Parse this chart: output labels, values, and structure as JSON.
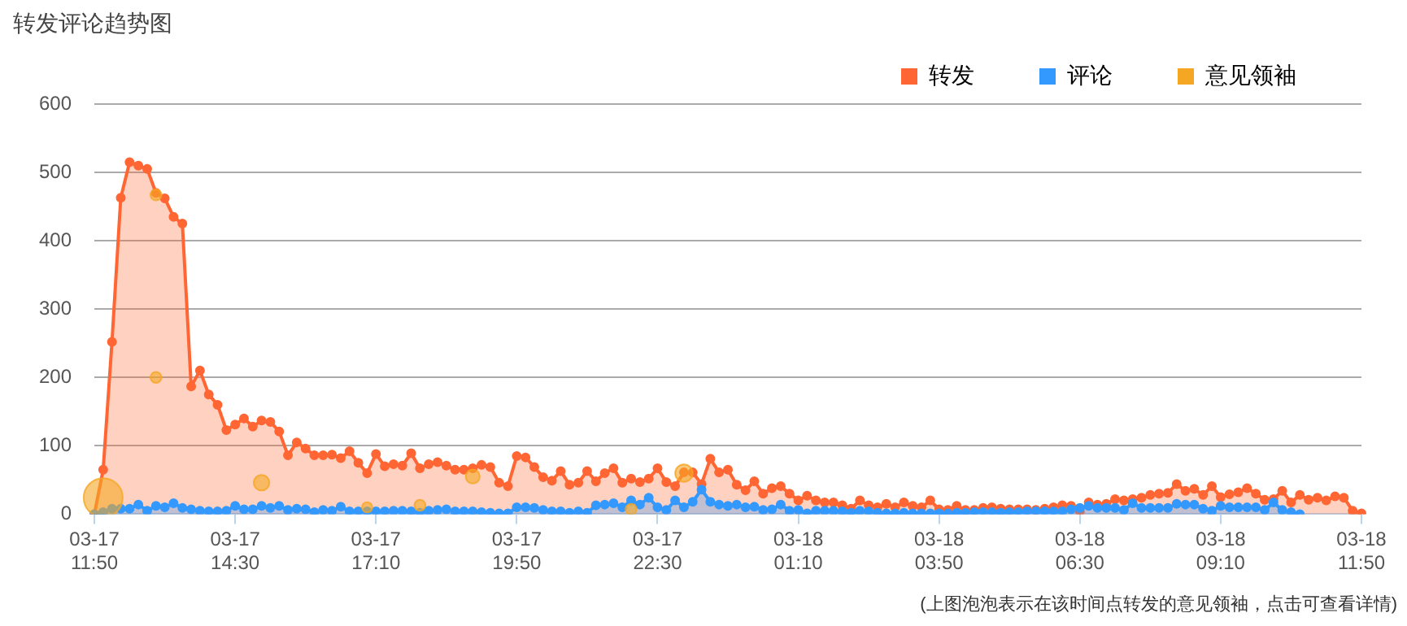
{
  "chart_data": {
    "type": "area",
    "title": "转发评论趋势图",
    "categories": [
      "03-17 11:50",
      null,
      null,
      null,
      null,
      null,
      null,
      null,
      null,
      null,
      null,
      null,
      null,
      null,
      null,
      null,
      "03-17 14:30",
      null,
      null,
      null,
      null,
      null,
      null,
      null,
      null,
      null,
      null,
      null,
      null,
      null,
      null,
      null,
      "03-17 17:10",
      null,
      null,
      null,
      null,
      null,
      null,
      null,
      null,
      null,
      null,
      null,
      null,
      null,
      null,
      null,
      "03-17 19:50",
      null,
      null,
      null,
      null,
      null,
      null,
      null,
      null,
      null,
      null,
      null,
      null,
      null,
      null,
      null,
      "03-17 22:30",
      null,
      null,
      null,
      null,
      null,
      null,
      null,
      null,
      null,
      null,
      null,
      null,
      null,
      null,
      null,
      "03-18 01:10",
      null,
      null,
      null,
      null,
      null,
      null,
      null,
      null,
      null,
      null,
      null,
      null,
      null,
      null,
      null,
      "03-18 03:50",
      null,
      null,
      null,
      null,
      null,
      null,
      null,
      null,
      null,
      null,
      null,
      null,
      null,
      null,
      null,
      "03-18 06:30",
      null,
      null,
      null,
      null,
      null,
      null,
      null,
      null,
      null,
      null,
      null,
      null,
      null,
      null,
      null,
      "03-18 09:10",
      null,
      null,
      null,
      null,
      null,
      null,
      null,
      null,
      null,
      null,
      null,
      null,
      null,
      null,
      null,
      "03-18 11:50"
    ],
    "ylim": [
      0,
      600
    ],
    "yticks": [
      0,
      100,
      200,
      300,
      400,
      500,
      600
    ],
    "grid": "y",
    "legend": "top right",
    "marker": "circle",
    "annotations": [
      "(上图泡泡表示在该时间点转发的意见领袖，点击可查看详情)"
    ],
    "series": [
      {
        "name": "转发",
        "color": "#ff6633",
        "values": [
          0,
          65,
          252,
          463,
          515,
          510,
          505,
          470,
          462,
          435,
          425,
          187,
          210,
          175,
          160,
          123,
          131,
          140,
          128,
          137,
          135,
          121,
          86,
          105,
          96,
          86,
          86,
          87,
          82,
          92,
          75,
          60,
          88,
          70,
          73,
          71,
          89,
          67,
          73,
          76,
          71,
          65,
          65,
          67,
          72,
          69,
          46,
          41,
          85,
          83,
          69,
          54,
          49,
          63,
          43,
          46,
          63,
          48,
          60,
          67,
          46,
          52,
          47,
          52,
          67,
          47,
          41,
          61,
          61,
          44,
          81,
          61,
          65,
          43,
          35,
          48,
          30,
          38,
          41,
          30,
          20,
          27,
          20,
          17,
          17,
          13,
          8,
          20,
          13,
          10,
          15,
          10,
          17,
          12,
          10,
          20,
          7,
          6,
          12,
          6,
          6,
          9,
          10,
          8,
          7,
          7,
          7,
          6,
          8,
          10,
          13,
          12,
          4,
          17,
          14,
          15,
          22,
          20,
          22,
          24,
          28,
          30,
          31,
          44,
          34,
          37,
          28,
          41,
          25,
          29,
          32,
          38,
          30,
          21,
          22,
          34,
          17,
          28,
          21,
          24,
          20,
          26,
          24,
          5,
          1
        ]
      },
      {
        "name": "评论",
        "color": "#3399ff",
        "values": [
          0,
          3,
          8,
          8,
          8,
          14,
          5,
          12,
          10,
          16,
          9,
          7,
          5,
          4,
          4,
          5,
          12,
          7,
          7,
          12,
          9,
          12,
          6,
          8,
          7,
          3,
          6,
          5,
          11,
          4,
          4,
          4,
          4,
          4,
          5,
          5,
          4,
          2,
          5,
          6,
          7,
          4,
          4,
          4,
          3,
          2,
          1,
          1,
          10,
          10,
          9,
          6,
          4,
          4,
          2,
          4,
          2,
          13,
          14,
          16,
          10,
          20,
          14,
          24,
          10,
          6,
          20,
          10,
          18,
          36,
          18,
          14,
          12,
          14,
          10,
          11,
          6,
          7,
          14,
          5,
          6,
          1,
          5,
          5,
          5,
          4,
          2,
          5,
          4,
          2,
          1,
          1,
          2,
          1,
          1,
          1,
          1,
          1,
          2,
          2,
          3,
          3,
          3,
          2,
          3,
          3,
          4,
          4,
          4,
          4,
          4,
          7,
          9,
          12,
          9,
          9,
          9,
          6,
          16,
          9,
          9,
          9,
          9,
          15,
          14,
          14,
          8,
          5,
          12,
          10,
          10,
          10,
          10,
          6,
          17,
          6,
          3,
          0,
          null,
          null,
          null,
          null,
          null,
          null,
          null
        ]
      },
      {
        "name": "意见领袖",
        "type": "bubble",
        "color": "#f5a623",
        "values": [
          null,
          24,
          null,
          null,
          null,
          null,
          null,
          467,
          null,
          null,
          null,
          null,
          null,
          null,
          null,
          null,
          null,
          null,
          null,
          46,
          null,
          null,
          null,
          null,
          null,
          null,
          null,
          null,
          null,
          null,
          null,
          10,
          null,
          null,
          null,
          null,
          null,
          13,
          null,
          null,
          null,
          null,
          null,
          55,
          null,
          null,
          null,
          null,
          null,
          null,
          null,
          null,
          null,
          null,
          null,
          null,
          null,
          null,
          null,
          null,
          null,
          7,
          null,
          null,
          null,
          null,
          null,
          60,
          null,
          null,
          null,
          null,
          null,
          null,
          null,
          null,
          null,
          null,
          null,
          null,
          null,
          null,
          null,
          null,
          null,
          null,
          null,
          null,
          null,
          null,
          null,
          null,
          null,
          null,
          null,
          null,
          null,
          null,
          null,
          null,
          null,
          null,
          null,
          null,
          null,
          null,
          null,
          null,
          null,
          null,
          null,
          null,
          null,
          null,
          null,
          null,
          null,
          null,
          null,
          null,
          null,
          null,
          null,
          null,
          null,
          null,
          null,
          null,
          null,
          null,
          null,
          null,
          null,
          null,
          null,
          null,
          null,
          null,
          null,
          null,
          null,
          null,
          null,
          null,
          null
        ],
        "sizes": [
          null,
          1,
          null,
          null,
          null,
          null,
          null,
          0.08,
          null,
          null,
          null,
          null,
          null,
          null,
          null,
          null,
          null,
          null,
          null,
          0.16,
          null,
          null,
          null,
          null,
          null,
          null,
          null,
          null,
          null,
          null,
          null,
          0.07,
          null,
          null,
          null,
          null,
          null,
          0.08,
          null,
          null,
          null,
          null,
          null,
          0.13,
          null,
          null,
          null,
          null,
          null,
          null,
          null,
          null,
          null,
          null,
          null,
          null,
          null,
          null,
          null,
          null,
          null,
          0.08,
          null,
          null,
          null,
          null,
          null,
          0.2,
          null,
          null,
          null,
          null,
          null,
          null,
          null,
          null,
          null,
          null,
          null,
          null,
          null,
          null,
          null,
          null,
          null,
          null,
          null,
          null,
          null,
          null,
          null,
          null,
          null,
          null,
          null,
          null,
          null,
          null,
          null,
          null,
          null,
          null,
          null,
          null,
          null,
          null,
          null,
          null,
          null,
          null,
          null,
          null,
          null,
          null,
          null,
          null,
          null,
          null,
          null,
          null,
          null,
          null,
          null,
          null,
          null,
          null,
          null,
          null,
          null,
          null,
          null,
          null,
          null,
          null,
          null,
          null,
          null,
          null,
          null,
          null,
          null,
          null,
          null,
          null,
          null
        ]
      },
      {
        "type": "bubble",
        "color": "#f5a623",
        "values": [
          null,
          null,
          null,
          null,
          null,
          null,
          null,
          200,
          null,
          null,
          null,
          null,
          null,
          null,
          null,
          null,
          null,
          null,
          null,
          null,
          null,
          null,
          null,
          null,
          null,
          null,
          null,
          null,
          null,
          null,
          null,
          null,
          null,
          null,
          null,
          null,
          null,
          null,
          null,
          null,
          null,
          null,
          null,
          null,
          null,
          null,
          null,
          null,
          null,
          null,
          null,
          null,
          null,
          null,
          null,
          null,
          null,
          null,
          null,
          null,
          null,
          null,
          null,
          null,
          null,
          null,
          null,
          null,
          null,
          null,
          null,
          null,
          null,
          null,
          null,
          null,
          null,
          null,
          null,
          null,
          null,
          null,
          null,
          null,
          null,
          null,
          null,
          null,
          null,
          null,
          null,
          null,
          null,
          null,
          null,
          null,
          null,
          null,
          null,
          null,
          null,
          null,
          null,
          null,
          null,
          null,
          null,
          null,
          null,
          null,
          null,
          null,
          null,
          null,
          null,
          null,
          null,
          null,
          null,
          null,
          null,
          null,
          null,
          null,
          null,
          null,
          null,
          null,
          null,
          null,
          null,
          null,
          null,
          null,
          null,
          null,
          null,
          null,
          null,
          null,
          null,
          null,
          null,
          null,
          null
        ],
        "sizes": [
          null,
          null,
          null,
          null,
          null,
          null,
          null,
          0.08,
          null,
          null,
          null,
          null,
          null,
          null,
          null,
          null,
          null,
          null,
          null,
          null,
          null,
          null,
          null,
          null,
          null,
          null,
          null,
          null,
          null,
          null,
          null,
          null,
          null,
          null,
          null,
          null,
          null,
          null,
          null,
          null,
          null,
          null,
          null,
          null,
          null,
          null,
          null,
          null,
          null,
          null,
          null,
          null,
          null,
          null,
          null,
          null,
          null,
          null,
          null,
          null,
          null,
          null,
          null,
          null,
          null,
          null,
          null,
          null,
          null,
          null,
          null,
          null,
          null,
          null,
          null,
          null,
          null,
          null,
          null,
          null,
          null,
          null,
          null,
          null,
          null,
          null,
          null,
          null,
          null,
          null,
          null,
          null,
          null,
          null,
          null,
          null,
          null,
          null,
          null,
          null,
          null,
          null,
          null,
          null,
          null,
          null,
          null,
          null,
          null,
          null,
          null,
          null,
          null,
          null,
          null,
          null,
          null,
          null,
          null,
          null,
          null,
          null,
          null,
          null,
          null,
          null,
          null,
          null,
          null,
          null,
          null,
          null,
          null,
          null,
          null,
          null,
          null,
          null,
          null,
          null,
          null,
          null,
          null,
          null,
          null
        ]
      }
    ]
  }
}
